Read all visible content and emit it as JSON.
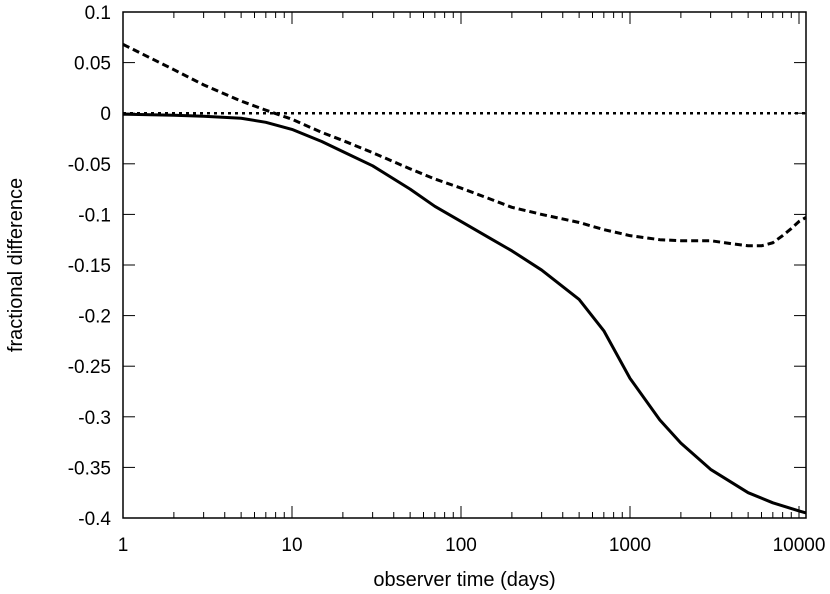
{
  "chart_data": {
    "type": "line",
    "title": "",
    "xlabel": "observer time (days)",
    "ylabel": "fractional difference",
    "xscale": "log",
    "xlim": [
      1,
      11000
    ],
    "ylim": [
      -0.4,
      0.1
    ],
    "grid": false,
    "legend": "none",
    "xticks": [
      1,
      10,
      100,
      1000,
      10000
    ],
    "xtick_labels": [
      "1",
      "10",
      "100",
      "1000",
      "10000"
    ],
    "yticks": [
      0.1,
      0.05,
      0,
      -0.05,
      -0.1,
      -0.15,
      -0.2,
      -0.25,
      -0.3,
      -0.35,
      -0.4
    ],
    "ytick_labels": [
      "0.1",
      "0.05",
      "0",
      "-0.05",
      "-0.1",
      "-0.15",
      "-0.2",
      "-0.25",
      "-0.3",
      "-0.35",
      "-0.4"
    ],
    "series": [
      {
        "style": "solid",
        "color": "#000000",
        "x": [
          1,
          2,
          3,
          5,
          7,
          10,
          15,
          20,
          30,
          50,
          70,
          100,
          150,
          200,
          300,
          500,
          700,
          1000,
          1500,
          2000,
          3000,
          5000,
          7000,
          10000,
          11000
        ],
        "y": [
          -0.001,
          -0.002,
          -0.003,
          -0.005,
          -0.009,
          -0.016,
          -0.028,
          -0.038,
          -0.052,
          -0.075,
          -0.092,
          -0.107,
          -0.124,
          -0.136,
          -0.155,
          -0.184,
          -0.215,
          -0.262,
          -0.303,
          -0.326,
          -0.352,
          -0.375,
          -0.385,
          -0.393,
          -0.395
        ]
      },
      {
        "style": "dashed",
        "color": "#000000",
        "x": [
          1,
          2,
          3,
          5,
          7,
          10,
          15,
          20,
          30,
          50,
          70,
          100,
          150,
          200,
          300,
          500,
          700,
          1000,
          1500,
          2000,
          3000,
          4000,
          5000,
          6000,
          7000,
          8000,
          9000,
          10000,
          11000
        ],
        "y": [
          0.068,
          0.043,
          0.028,
          0.012,
          0.003,
          -0.006,
          -0.019,
          -0.027,
          -0.039,
          -0.055,
          -0.065,
          -0.074,
          -0.085,
          -0.093,
          -0.1,
          -0.108,
          -0.115,
          -0.121,
          -0.125,
          -0.126,
          -0.126,
          -0.129,
          -0.131,
          -0.131,
          -0.128,
          -0.121,
          -0.114,
          -0.107,
          -0.103
        ]
      },
      {
        "style": "dotted",
        "color": "#000000",
        "x": [
          1,
          11000
        ],
        "y": [
          0,
          0
        ]
      }
    ]
  }
}
